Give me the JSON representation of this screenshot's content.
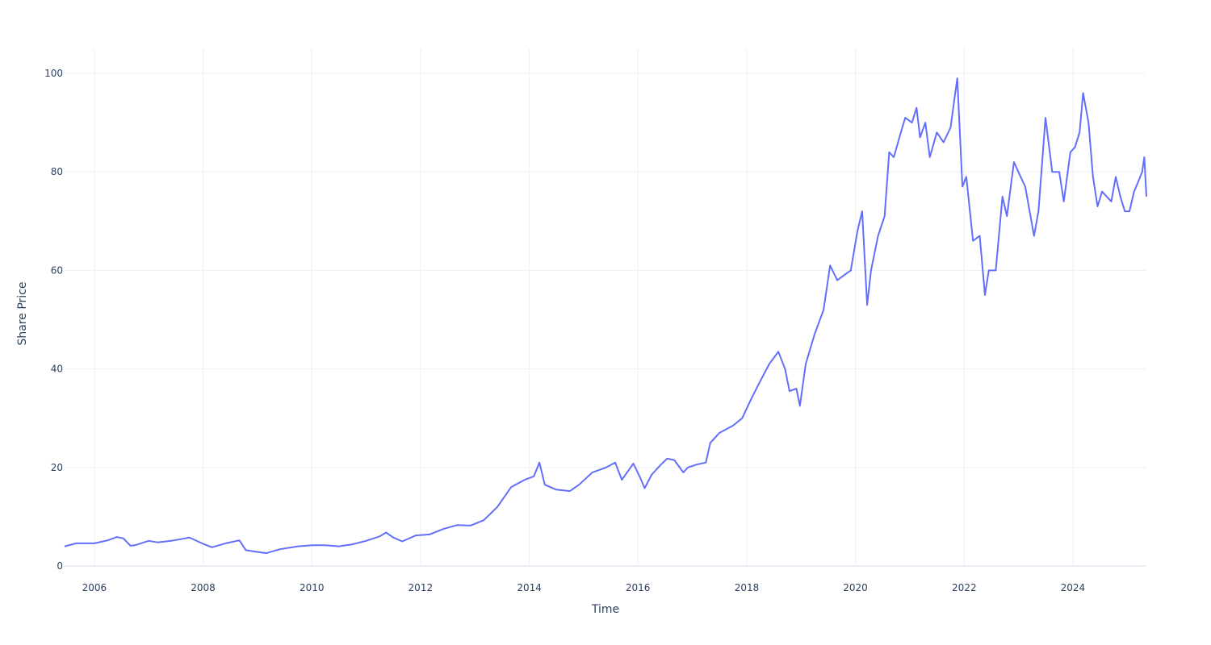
{
  "chart_data": {
    "type": "line",
    "title": "",
    "xlabel": "Time",
    "ylabel": "Share Price",
    "xlim": [
      "2005-06-15",
      "2025-05-09"
    ],
    "ylim": [
      -5,
      105
    ],
    "x_ticks": [
      "2006",
      "2008",
      "2010",
      "2012",
      "2014",
      "2016",
      "2018",
      "2020",
      "2022",
      "2024"
    ],
    "y_ticks": [
      "0",
      "20",
      "40",
      "60",
      "80",
      "100"
    ],
    "grid": true,
    "legend": "none",
    "colors": {
      "line": "#636efa",
      "grid": "#ebf0f8",
      "text": "#2a3f5f"
    },
    "series": [
      {
        "x": [
          "2005-06-15",
          "2005-09-01",
          "2006-01-01",
          "2006-04-01",
          "2006-06-01",
          "2006-07-15",
          "2006-09-01",
          "2006-10-01",
          "2007-01-01",
          "2007-03-01",
          "2007-06-01",
          "2007-09-01",
          "2007-10-01",
          "2008-01-01",
          "2008-03-01",
          "2008-06-01",
          "2008-09-01",
          "2008-10-15",
          "2008-12-01",
          "2009-03-01",
          "2009-06-01",
          "2009-10-01",
          "2010-01-01",
          "2010-04-01",
          "2010-07-01",
          "2010-10-01",
          "2011-01-01",
          "2011-04-01",
          "2011-05-15",
          "2011-07-01",
          "2011-09-01",
          "2011-12-01",
          "2012-03-01",
          "2012-06-01",
          "2012-09-01",
          "2012-12-01",
          "2013-03-01",
          "2013-06-01",
          "2013-09-01",
          "2013-12-01",
          "2014-02-01",
          "2014-03-10",
          "2014-04-15",
          "2014-07-01",
          "2014-10-01",
          "2014-12-01",
          "2015-03-01",
          "2015-06-01",
          "2015-08-01",
          "2015-09-15",
          "2015-12-01",
          "2016-01-15",
          "2016-02-15",
          "2016-04-01",
          "2016-06-01",
          "2016-07-15",
          "2016-09-01",
          "2016-11-01",
          "2016-12-01",
          "2017-02-01",
          "2017-04-01",
          "2017-05-01",
          "2017-07-01",
          "2017-10-01",
          "2017-12-01",
          "2018-02-01",
          "2018-04-01",
          "2018-06-01",
          "2018-08-01",
          "2018-09-15",
          "2018-10-15",
          "2018-12-01",
          "2018-12-24",
          "2019-02-01",
          "2019-04-01",
          "2019-06-01",
          "2019-07-15",
          "2019-09-01",
          "2019-10-15",
          "2019-12-01",
          "2020-01-15",
          "2020-02-15",
          "2020-03-20",
          "2020-04-15",
          "2020-06-01",
          "2020-07-15",
          "2020-08-15",
          "2020-09-15",
          "2020-11-01",
          "2020-12-01",
          "2021-01-15",
          "2021-02-15",
          "2021-03-10",
          "2021-04-15",
          "2021-05-15",
          "2021-07-01",
          "2021-08-15",
          "2021-10-01",
          "2021-11-15",
          "2021-12-20",
          "2022-01-15",
          "2022-03-01",
          "2022-04-15",
          "2022-05-20",
          "2022-06-15",
          "2022-08-01",
          "2022-09-15",
          "2022-10-15",
          "2022-12-01",
          "2023-01-15",
          "2023-02-15",
          "2023-04-15",
          "2023-05-15",
          "2023-07-01",
          "2023-08-15",
          "2023-10-01",
          "2023-11-01",
          "2023-12-15",
          "2024-01-15",
          "2024-02-15",
          "2024-03-10",
          "2024-04-15",
          "2024-05-15",
          "2024-06-15",
          "2024-07-15",
          "2024-08-15",
          "2024-09-15",
          "2024-10-15",
          "2024-11-15",
          "2024-12-15",
          "2025-01-15",
          "2025-02-15",
          "2025-03-15",
          "2025-04-10",
          "2025-04-25",
          "2025-05-09"
        ],
        "y": [
          4.0,
          4.6,
          4.6,
          5.2,
          5.9,
          5.6,
          4.1,
          4.2,
          5.1,
          4.8,
          5.1,
          5.6,
          5.8,
          4.5,
          3.8,
          4.6,
          5.2,
          3.2,
          3.0,
          2.6,
          3.4,
          4.0,
          4.2,
          4.2,
          4.0,
          4.4,
          5.1,
          6.0,
          6.8,
          5.8,
          5.0,
          6.2,
          6.4,
          7.5,
          8.3,
          8.2,
          9.3,
          12.0,
          16.0,
          17.5,
          18.2,
          21.0,
          16.5,
          15.5,
          15.2,
          16.5,
          19.0,
          20.0,
          21.0,
          17.5,
          20.8,
          18.0,
          15.8,
          18.5,
          20.5,
          21.8,
          21.5,
          19.0,
          20.0,
          20.6,
          21.0,
          25.0,
          27.0,
          28.5,
          30.0,
          34.0,
          37.5,
          41.0,
          43.5,
          40.0,
          35.5,
          36.0,
          32.5,
          41.0,
          47.0,
          52.0,
          61.0,
          58.0,
          59.0,
          60.0,
          68.0,
          72.0,
          53.0,
          60.0,
          67.0,
          71.0,
          84.0,
          83.0,
          88.0,
          91.0,
          90.0,
          93.0,
          87.0,
          90.0,
          83.0,
          88.0,
          86.0,
          89.0,
          99.0,
          77.0,
          79.0,
          66.0,
          67.0,
          55.0,
          60.0,
          60.0,
          75.0,
          71.0,
          82.0,
          79.0,
          77.0,
          67.0,
          72.0,
          91.0,
          80.0,
          80.0,
          74.0,
          84.0,
          85.0,
          88.0,
          96.0,
          90.0,
          79.0,
          73.0,
          76.0,
          75.0,
          74.0,
          79.0,
          75.0,
          72.0,
          72.0,
          76.0,
          78.0,
          80.0,
          83.0,
          75.0
        ]
      }
    ]
  }
}
